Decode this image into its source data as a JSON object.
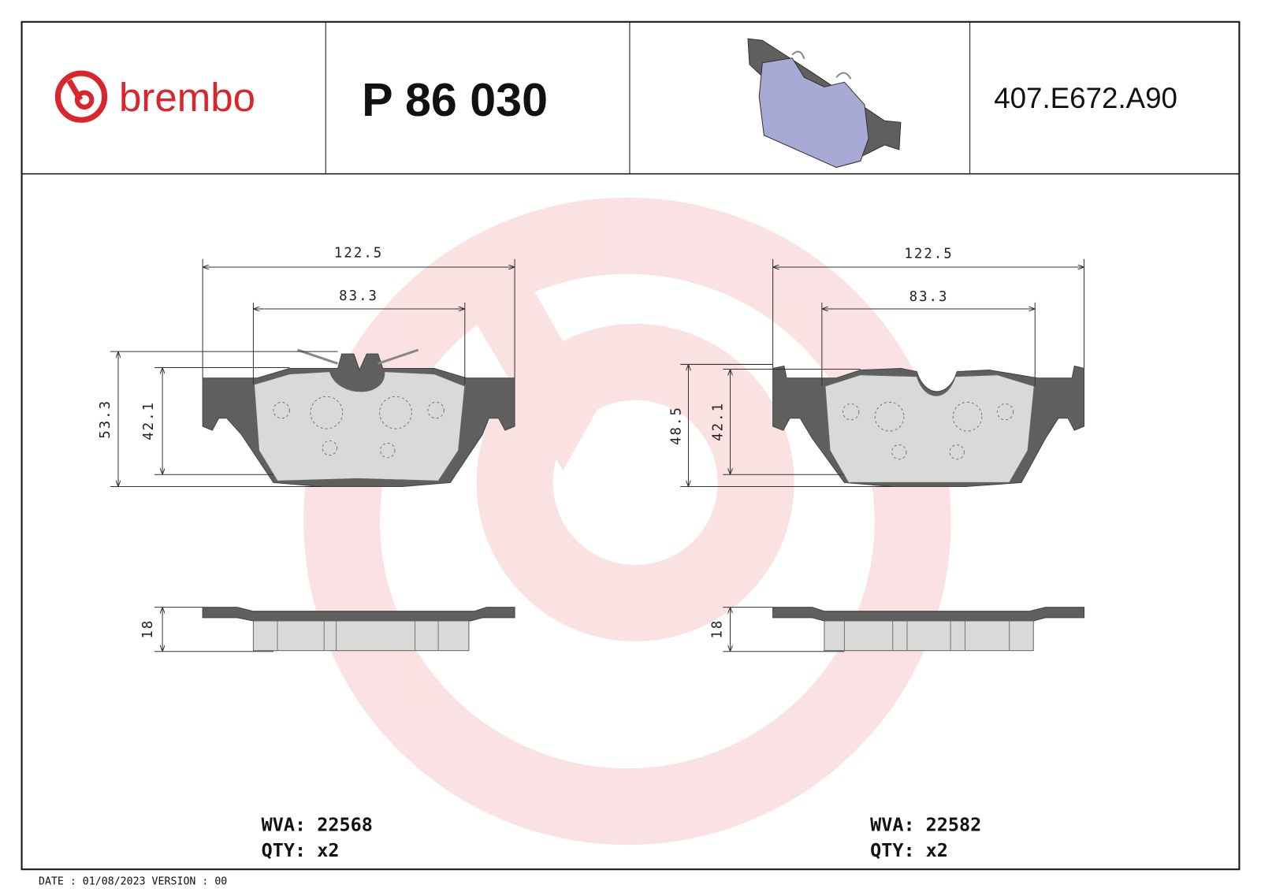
{
  "header": {
    "brand": "brembo",
    "part_number": "P 86 030",
    "reference": "407.E672.A90"
  },
  "colors": {
    "brand_red": "#d9262c",
    "watermark": "#f6c9cc",
    "plate": "#5f5f5f",
    "friction": "#d9d9d9",
    "render_pad": "#a9a9d6"
  },
  "left_pad": {
    "width_overall": "122.5",
    "width_inner": "83.3",
    "height_overall": "53.3",
    "height_friction": "42.1",
    "thickness": "18",
    "wva": "WVA: 22568",
    "qty": "QTY: x2"
  },
  "right_pad": {
    "width_overall": "122.5",
    "width_inner": "83.3",
    "height_overall": "48.5",
    "height_friction": "42.1",
    "thickness": "18",
    "wva": "WVA: 22582",
    "qty": "QTY: x2"
  },
  "footer": {
    "text": "DATE : 01/08/2023 VERSION : 00"
  }
}
